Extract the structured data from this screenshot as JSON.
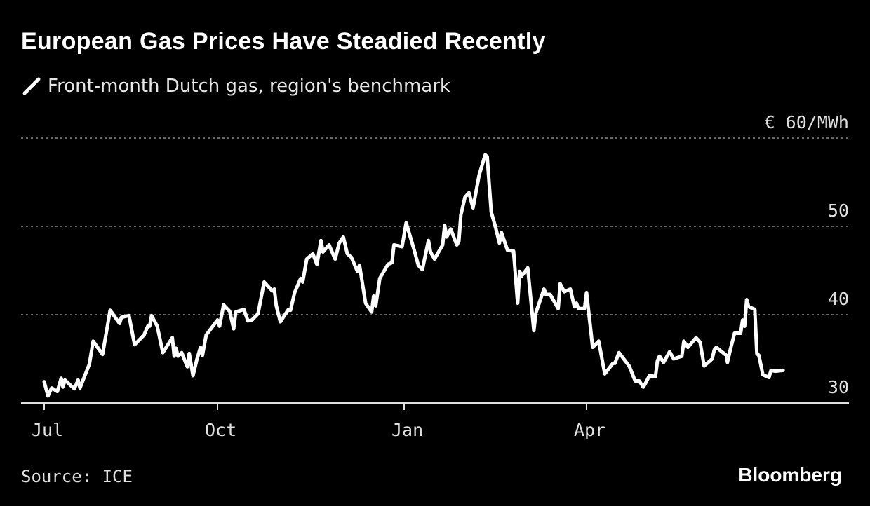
{
  "chart_data": {
    "type": "line",
    "title": "European Gas Prices Have Steadied Recently",
    "legend": [
      "Front-month Dutch gas, region's benchmark"
    ],
    "legend_placement": "top-left",
    "ylabel": "€ 60/MWh",
    "y_ticks": [
      {
        "value": 30,
        "label": "30"
      },
      {
        "value": 40,
        "label": "40"
      },
      {
        "value": 50,
        "label": "50"
      },
      {
        "value": 60,
        "label": "€ 60/MWh"
      }
    ],
    "ylim": [
      30,
      60
    ],
    "x_unit": "days since start of July",
    "x_ticks": [
      {
        "value": 0,
        "label": "Jul"
      },
      {
        "value": 92,
        "label": "Oct"
      },
      {
        "value": 184,
        "label": "Jan"
      },
      {
        "value": 274,
        "label": "Apr"
      }
    ],
    "grid": true,
    "source": "Source: ICE",
    "brand": "Bloomberg",
    "line_color": "#ffffff",
    "series": [
      {
        "name": "Front-month Dutch gas, region's benchmark",
        "points": [
          [
            0,
            32.4
          ],
          [
            2,
            30.8
          ],
          [
            4,
            31.7
          ],
          [
            7,
            31.3
          ],
          [
            9,
            32.8
          ],
          [
            10,
            31.8
          ],
          [
            11,
            32.6
          ],
          [
            16,
            31.6
          ],
          [
            18,
            32.6
          ],
          [
            19,
            31.7
          ],
          [
            24,
            34.4
          ],
          [
            26,
            37.0
          ],
          [
            31,
            35.5
          ],
          [
            35,
            40.5
          ],
          [
            40,
            39.0
          ],
          [
            41,
            39.7
          ],
          [
            45,
            39.9
          ],
          [
            48,
            36.6
          ],
          [
            53,
            37.7
          ],
          [
            55,
            38.7
          ],
          [
            56,
            38.7
          ],
          [
            57,
            39.9
          ],
          [
            60,
            38.7
          ],
          [
            63,
            35.7
          ],
          [
            68,
            37.4
          ],
          [
            69,
            35.3
          ],
          [
            70,
            36.2
          ],
          [
            71,
            35.3
          ],
          [
            73,
            35.7
          ],
          [
            76,
            34.1
          ],
          [
            77,
            35.6
          ],
          [
            79,
            33.1
          ],
          [
            81,
            34.9
          ],
          [
            83,
            36.3
          ],
          [
            84,
            35.4
          ],
          [
            86,
            37.7
          ],
          [
            92,
            39.4
          ],
          [
            93,
            38.7
          ],
          [
            95,
            41.1
          ],
          [
            98,
            40.4
          ],
          [
            100,
            38.4
          ],
          [
            101,
            40.3
          ],
          [
            105,
            40.6
          ],
          [
            107,
            39.3
          ],
          [
            109,
            39.4
          ],
          [
            112,
            40.1
          ],
          [
            115,
            43.7
          ],
          [
            119,
            42.7
          ],
          [
            120,
            42.9
          ],
          [
            121,
            41.0
          ],
          [
            123,
            39.2
          ],
          [
            127,
            40.6
          ],
          [
            128,
            40.5
          ],
          [
            130,
            42.5
          ],
          [
            133,
            44.1
          ],
          [
            134,
            43.7
          ],
          [
            136,
            46.3
          ],
          [
            139,
            46.9
          ],
          [
            141,
            45.7
          ],
          [
            143,
            48.4
          ],
          [
            144,
            47.1
          ],
          [
            147,
            47.9
          ],
          [
            150,
            46.3
          ],
          [
            152,
            48.1
          ],
          [
            154,
            48.8
          ],
          [
            156,
            46.9
          ],
          [
            158,
            46.5
          ],
          [
            161,
            44.9
          ],
          [
            162,
            45.6
          ],
          [
            165,
            41.3
          ],
          [
            168,
            40.3
          ],
          [
            169,
            42.1
          ],
          [
            170,
            41.0
          ],
          [
            172,
            44.1
          ],
          [
            176,
            45.7
          ],
          [
            178,
            45.9
          ],
          [
            179,
            47.9
          ],
          [
            183,
            47.7
          ],
          [
            185,
            50.4
          ],
          [
            189,
            47.3
          ],
          [
            191,
            45.6
          ],
          [
            193,
            45.1
          ],
          [
            196,
            48.4
          ],
          [
            197,
            47.1
          ],
          [
            199,
            46.3
          ],
          [
            203,
            47.9
          ],
          [
            204,
            50.1
          ],
          [
            205,
            48.8
          ],
          [
            207,
            49.7
          ],
          [
            210,
            47.9
          ],
          [
            211,
            48.3
          ],
          [
            212,
            51.3
          ],
          [
            214,
            53.3
          ],
          [
            216,
            53.8
          ],
          [
            218,
            52.1
          ],
          [
            221,
            55.8
          ],
          [
            224,
            58.1
          ],
          [
            225,
            57.9
          ],
          [
            227,
            51.6
          ],
          [
            229,
            50.0
          ],
          [
            231,
            48.1
          ],
          [
            232,
            49.3
          ],
          [
            235,
            47.3
          ],
          [
            238,
            47.2
          ],
          [
            240,
            41.3
          ],
          [
            241,
            44.9
          ],
          [
            242,
            44.4
          ],
          [
            245,
            45.3
          ],
          [
            248,
            38.2
          ],
          [
            249,
            40.2
          ],
          [
            253,
            42.9
          ],
          [
            254,
            42.3
          ],
          [
            256,
            42.3
          ],
          [
            260,
            40.7
          ],
          [
            261,
            43.5
          ],
          [
            263,
            42.6
          ],
          [
            266,
            42.9
          ],
          [
            268,
            40.9
          ],
          [
            269,
            41.3
          ],
          [
            270,
            40.7
          ],
          [
            273,
            40.7
          ],
          [
            274,
            42.5
          ],
          [
            277,
            36.3
          ],
          [
            280,
            37.0
          ],
          [
            283,
            33.3
          ],
          [
            287,
            34.5
          ],
          [
            288,
            34.5
          ],
          [
            290,
            35.7
          ],
          [
            295,
            34.2
          ],
          [
            298,
            32.5
          ],
          [
            300,
            32.5
          ],
          [
            302,
            31.8
          ],
          [
            303,
            32.2
          ],
          [
            305,
            33.1
          ],
          [
            308,
            33.0
          ],
          [
            309,
            34.8
          ],
          [
            310,
            35.3
          ],
          [
            312,
            34.6
          ],
          [
            315,
            35.8
          ],
          [
            317,
            35.0
          ],
          [
            321,
            35.3
          ],
          [
            322,
            37.0
          ],
          [
            324,
            36.3
          ],
          [
            328,
            37.4
          ],
          [
            330,
            36.9
          ],
          [
            332,
            34.2
          ],
          [
            336,
            35.0
          ],
          [
            337,
            36.0
          ],
          [
            338,
            36.3
          ],
          [
            343,
            35.4
          ],
          [
            343.5,
            34.6
          ],
          [
            345,
            36.1
          ],
          [
            347,
            37.9
          ],
          [
            350,
            37.9
          ],
          [
            351,
            39.4
          ],
          [
            352,
            38.7
          ],
          [
            353,
            41.7
          ],
          [
            354,
            40.9
          ],
          [
            357,
            40.6
          ],
          [
            358,
            35.6
          ],
          [
            359,
            35.4
          ],
          [
            361,
            33.2
          ],
          [
            364,
            32.9
          ],
          [
            365,
            33.7
          ],
          [
            367,
            33.6
          ],
          [
            371,
            33.7
          ]
        ]
      }
    ]
  }
}
